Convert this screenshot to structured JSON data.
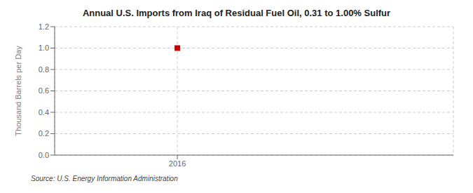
{
  "chart_data": {
    "type": "scatter",
    "title": "Annual U.S. Imports from Iraq of Residual Fuel Oil, 0.31 to 1.00% Sulfur",
    "y_label": "Thousand Barrels per Day",
    "annotations": [
      "Source: U.S. Energy Information Administration"
    ],
    "x": [
      2016
    ],
    "values": [
      1.0
    ],
    "color": "#cc0000",
    "marker": "square",
    "xlim": [
      2015.6,
      2016.9
    ],
    "xticks": [
      2016
    ],
    "ylim": [
      0.0,
      1.2
    ],
    "yticks": [
      {
        "value": 0,
        "label": "0.0"
      },
      0.2,
      0.4,
      0.6,
      0.8,
      {
        "value": 1,
        "label": "1.0"
      },
      1.2
    ],
    "grid": true
  }
}
